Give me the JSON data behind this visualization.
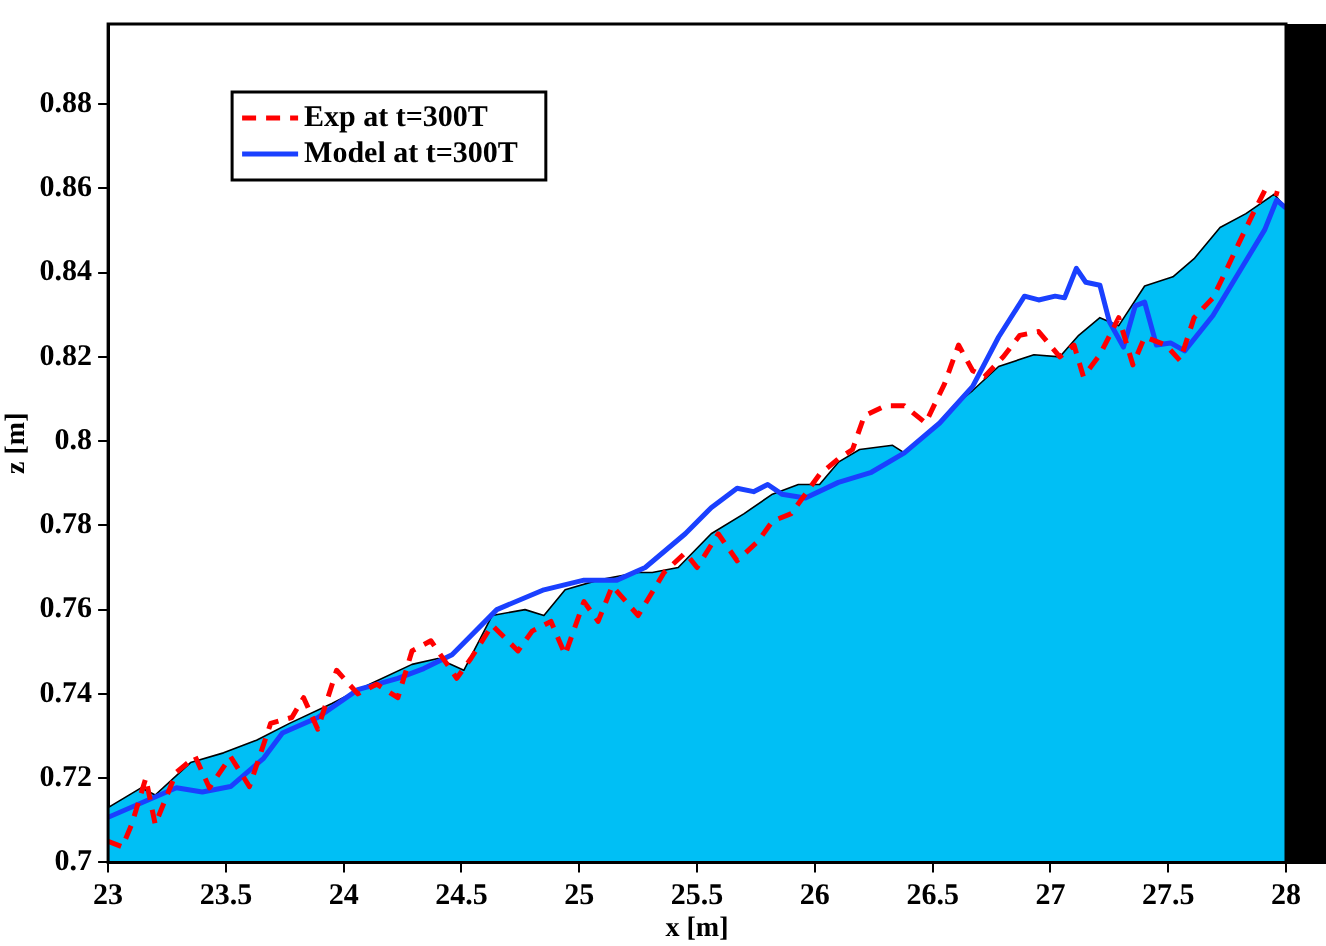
{
  "chart_data": {
    "type": "line",
    "xlabel": "x [m]",
    "ylabel": "z [m]",
    "xlim": [
      23,
      28
    ],
    "xticks": [
      23,
      23.5,
      24,
      24.5,
      25,
      25.5,
      26,
      26.5,
      27,
      27.5,
      28
    ],
    "ylim": [
      0.7,
      0.899
    ],
    "yticks": [
      0.7,
      0.72,
      0.74,
      0.76,
      0.78,
      0.8,
      0.82,
      0.84,
      0.86,
      0.88
    ],
    "grid": false,
    "legend": "top left",
    "series": [
      {
        "type": "area",
        "color": "#00bff5",
        "x": [
          23,
          23.14,
          23.2,
          23.35,
          23.49,
          23.63,
          23.77,
          23.95,
          24.11,
          24.29,
          24.4,
          24.51,
          24.63,
          24.77,
          24.85,
          24.94,
          25.08,
          25.25,
          25.31,
          25.42,
          25.56,
          25.7,
          25.82,
          25.93,
          26.02,
          26.1,
          26.19,
          26.33,
          26.38,
          26.5,
          26.59,
          26.67,
          26.78,
          26.93,
          27.04,
          27.12,
          27.21,
          27.29,
          27.4,
          27.52,
          27.61,
          27.72,
          27.83,
          27.95,
          28
        ],
        "values": [
          0.713,
          0.7177,
          0.716,
          0.7237,
          0.726,
          0.729,
          0.733,
          0.7377,
          0.7423,
          0.747,
          0.7484,
          0.7456,
          0.7586,
          0.76,
          0.7586,
          0.7647,
          0.767,
          0.7688,
          0.7688,
          0.77,
          0.778,
          0.7828,
          0.7874,
          0.7897,
          0.7897,
          0.795,
          0.798,
          0.799,
          0.7972,
          0.8028,
          0.8084,
          0.812,
          0.8177,
          0.8205,
          0.82,
          0.8251,
          0.8293,
          0.8274,
          0.8368,
          0.839,
          0.8433,
          0.8507,
          0.854,
          0.8586,
          0.8553
        ]
      },
      {
        "type": "line",
        "name": "Exp at t=300T",
        "color": "#ff0000",
        "line_style": "dashed",
        "x": [
          23,
          23.06,
          23.1,
          23.16,
          23.2,
          23.29,
          23.37,
          23.43,
          23.52,
          23.6,
          23.69,
          23.78,
          23.83,
          23.89,
          23.97,
          24.06,
          24.14,
          24.23,
          24.29,
          24.37,
          24.48,
          24.54,
          24.63,
          24.74,
          24.8,
          24.88,
          24.94,
          25.02,
          25.08,
          25.14,
          25.25,
          25.36,
          25.45,
          25.5,
          25.59,
          25.67,
          25.76,
          25.82,
          25.9,
          26.02,
          26.1,
          26.16,
          26.21,
          26.3,
          26.38,
          26.47,
          26.55,
          26.61,
          26.67,
          26.72,
          26.8,
          26.87,
          26.95,
          27.04,
          27.1,
          27.14,
          27.21,
          27.29,
          27.35,
          27.4,
          27.49,
          27.55,
          27.61,
          27.69,
          27.75,
          27.8,
          27.86,
          27.91,
          27.97
        ],
        "values": [
          0.705,
          0.7037,
          0.709,
          0.72,
          0.709,
          0.7214,
          0.7251,
          0.7177,
          0.7251,
          0.718,
          0.733,
          0.7344,
          0.7391,
          0.7316,
          0.7456,
          0.74,
          0.7423,
          0.7391,
          0.7502,
          0.7526,
          0.7437,
          0.7484,
          0.7563,
          0.7502,
          0.7549,
          0.7572,
          0.7493,
          0.7619,
          0.7572,
          0.7656,
          0.7586,
          0.7688,
          0.7735,
          0.77,
          0.778,
          0.7716,
          0.7763,
          0.781,
          0.7828,
          0.7921,
          0.7958,
          0.798,
          0.806,
          0.8084,
          0.8084,
          0.8043,
          0.8135,
          0.8228,
          0.8167,
          0.8153,
          0.82,
          0.8251,
          0.826,
          0.82,
          0.8228,
          0.8153,
          0.8205,
          0.8293,
          0.8181,
          0.8247,
          0.8228,
          0.8191,
          0.8293,
          0.834,
          0.841,
          0.847,
          0.854,
          0.8595,
          0.8586
        ]
      },
      {
        "type": "line",
        "name": "Model at t=300T",
        "color": "#1a40ff",
        "line_style": "solid",
        "x": [
          23,
          23.29,
          23.4,
          23.52,
          23.66,
          23.74,
          23.89,
          24.06,
          24.23,
          24.34,
          24.46,
          24.65,
          24.85,
          25.02,
          25.16,
          25.28,
          25.45,
          25.56,
          25.67,
          25.74,
          25.8,
          25.86,
          25.96,
          26.1,
          26.24,
          26.38,
          26.53,
          26.67,
          26.78,
          26.89,
          26.95,
          27.02,
          27.06,
          27.11,
          27.15,
          27.21,
          27.25,
          27.31,
          27.36,
          27.4,
          27.45,
          27.51,
          27.57,
          27.69,
          27.8,
          27.91,
          27.96,
          28
        ],
        "values": [
          0.7107,
          0.7177,
          0.7167,
          0.718,
          0.7247,
          0.7307,
          0.7344,
          0.741,
          0.7437,
          0.746,
          0.7493,
          0.76,
          0.7647,
          0.767,
          0.767,
          0.77,
          0.778,
          0.7842,
          0.7888,
          0.788,
          0.7897,
          0.7874,
          0.7865,
          0.7902,
          0.7926,
          0.7972,
          0.8043,
          0.813,
          0.8247,
          0.8344,
          0.8335,
          0.8344,
          0.834,
          0.841,
          0.8377,
          0.837,
          0.8284,
          0.8223,
          0.8321,
          0.833,
          0.8228,
          0.8233,
          0.8214,
          0.8298,
          0.84,
          0.8502,
          0.8572,
          0.8553
        ]
      }
    ]
  }
}
